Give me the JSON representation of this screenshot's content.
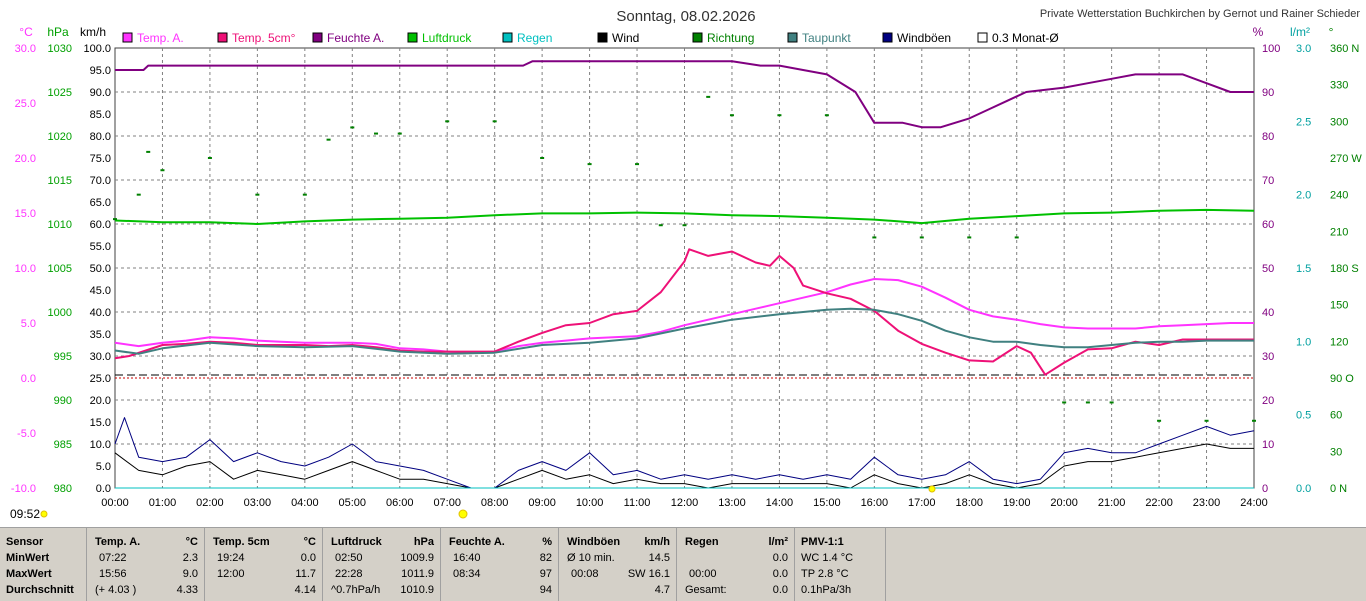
{
  "header": {
    "title": "Sonntag, 08.02.2026",
    "credit": "Private Wetterstation Buchkirchen by Gernot und Rainer Schieder",
    "time": "09:52"
  },
  "legend": [
    {
      "label": "Temp. A.",
      "color": "#ff33ff"
    },
    {
      "label": "Temp. 5cm°",
      "color": "#ee1177"
    },
    {
      "label": "Feuchte A.",
      "color": "#800080"
    },
    {
      "label": "Luftdruck",
      "color": "#00c000"
    },
    {
      "label": "Regen",
      "color": "#00c0c0"
    },
    {
      "label": "Wind",
      "color": "#000000"
    },
    {
      "label": "Richtung",
      "color": "#008000"
    },
    {
      "label": "Taupunkt",
      "color": "#408080"
    },
    {
      "label": "Windböen",
      "color": "#000080"
    },
    {
      "label": "0.3 Monat-Ø",
      "color": "#ffffff"
    }
  ],
  "colors": {
    "temp": "#ff33ff",
    "temp5": "#ee1177",
    "hum": "#800080",
    "press": "#00c000",
    "rain": "#00c0c0",
    "wind": "#000000",
    "dir": "#008000",
    "dew": "#408080",
    "gust": "#000080",
    "zero": "#cc0000",
    "grid": "#808080"
  },
  "axes": {
    "temp": {
      "unit": "°C",
      "ticks": [
        "30.0",
        "25.0",
        "20.0",
        "15.0",
        "10.0",
        "5.0",
        "0.0",
        "-5.0",
        "-10.0"
      ]
    },
    "press": {
      "unit": "hPa",
      "ticks": [
        "1030",
        "1025",
        "1020",
        "1015",
        "1010",
        "1005",
        "1000",
        "995",
        "990",
        "985",
        "980"
      ]
    },
    "kmh": {
      "unit": "km/h",
      "ticks": [
        "100.0",
        "95.0",
        "90.0",
        "85.0",
        "80.0",
        "75.0",
        "70.0",
        "65.0",
        "60.0",
        "55.0",
        "50.0",
        "45.0",
        "40.0",
        "35.0",
        "30.0",
        "25.0",
        "20.0",
        "15.0",
        "10.0",
        "5.0",
        "0.0"
      ]
    },
    "pct": {
      "unit": "%",
      "ticks": [
        "100",
        "90",
        "80",
        "70",
        "60",
        "50",
        "40",
        "30",
        "20",
        "10",
        "0"
      ]
    },
    "rain": {
      "unit": "l/m²",
      "ticks": [
        "3.0",
        "2.5",
        "2.0",
        "1.5",
        "1.0",
        "0.5",
        "0.0"
      ]
    },
    "dir": {
      "unit": "°",
      "ticks": [
        "360 N",
        "330",
        "300",
        "270 W",
        "240",
        "210",
        "180 S",
        "150",
        "120",
        "90 O",
        "60",
        "30",
        "0 N"
      ]
    },
    "x": {
      "ticks": [
        "00:00",
        "01:00",
        "02:00",
        "03:00",
        "04:00",
        "05:00",
        "06:00",
        "07:00",
        "08:00",
        "09:00",
        "10:00",
        "11:00",
        "12:00",
        "13:00",
        "14:00",
        "15:00",
        "16:00",
        "17:00",
        "18:00",
        "19:00",
        "20:00",
        "21:00",
        "22:00",
        "23:00",
        "24:00"
      ]
    }
  },
  "chart_data": {
    "type": "line",
    "title": "Sonntag, 08.02.2026",
    "xlim": [
      0,
      24
    ],
    "grid": true,
    "series": [
      {
        "name": "Temp. A.",
        "axis": "°C",
        "x": [
          0,
          0.5,
          1,
          1.5,
          2,
          2.5,
          3,
          3.5,
          4,
          4.5,
          5,
          5.5,
          6,
          6.5,
          7,
          7.4,
          8,
          8.5,
          9,
          9.5,
          10,
          10.5,
          11,
          11.5,
          12,
          12.5,
          13,
          13.5,
          14,
          14.5,
          15,
          15.5,
          16,
          16.5,
          17,
          17.5,
          18,
          18.5,
          19,
          19.5,
          20,
          20.5,
          21,
          21.5,
          22,
          22.5,
          23,
          23.5,
          24
        ],
        "y": [
          3.2,
          2.9,
          3.2,
          3.4,
          3.7,
          3.6,
          3.4,
          3.3,
          3.2,
          3.2,
          3.2,
          3.1,
          2.7,
          2.6,
          2.4,
          2.3,
          2.4,
          2.9,
          3.2,
          3.4,
          3.6,
          3.7,
          3.8,
          4.2,
          4.8,
          5.3,
          5.8,
          6.3,
          6.8,
          7.3,
          7.8,
          8.5,
          9.0,
          8.9,
          8.3,
          7.3,
          6.2,
          5.6,
          5.3,
          4.9,
          4.6,
          4.5,
          4.5,
          4.5,
          4.7,
          4.8,
          4.9,
          5.0,
          5.0
        ]
      },
      {
        "name": "Temp. 5cm°",
        "axis": "°C",
        "x": [
          0,
          0.3,
          1,
          1.5,
          2,
          2.5,
          3,
          3.5,
          4,
          4.5,
          5,
          5.5,
          6,
          6.5,
          7,
          7.5,
          8,
          8.5,
          9,
          9.5,
          10,
          10.5,
          11,
          11.5,
          12,
          12.1,
          12.5,
          13,
          13.5,
          13.8,
          14,
          14.3,
          14.5,
          15,
          15.5,
          16,
          16.5,
          17,
          17.5,
          18,
          18.5,
          19,
          19.3,
          19.6,
          20,
          20.5,
          21,
          21.5,
          22,
          22.5,
          23,
          23.5,
          24
        ],
        "y": [
          1.8,
          2.0,
          3.0,
          3.1,
          3.3,
          3.2,
          3.0,
          3.0,
          3.0,
          2.9,
          3.0,
          2.8,
          2.5,
          2.4,
          2.4,
          2.4,
          2.4,
          3.3,
          4.1,
          4.8,
          5.0,
          5.8,
          6.1,
          7.8,
          10.6,
          11.7,
          11.1,
          11.5,
          10.5,
          10.2,
          11.1,
          10.0,
          8.4,
          7.7,
          7.2,
          6.1,
          4.3,
          3.1,
          2.3,
          1.6,
          1.5,
          2.9,
          2.3,
          0.3,
          1.4,
          2.6,
          2.7,
          3.3,
          3.0,
          3.5,
          3.5,
          3.5,
          3.5
        ]
      },
      {
        "name": "Feuchte A.",
        "axis": "%",
        "x": [
          0,
          0.6,
          0.7,
          1.3,
          2,
          3,
          4,
          5,
          6,
          7,
          8,
          8.6,
          8.8,
          9,
          10,
          11,
          12,
          13,
          13.6,
          14,
          14.5,
          15,
          15.6,
          16,
          16.6,
          17,
          17.4,
          18,
          18.4,
          18.8,
          19.2,
          20,
          20.5,
          21,
          21.5,
          22,
          22.5,
          23,
          23.5,
          24
        ],
        "y": [
          95,
          95,
          96,
          96,
          96,
          96,
          96,
          96,
          96,
          96,
          96,
          96,
          97,
          97,
          97,
          97,
          97,
          97,
          96,
          96,
          95,
          94,
          90,
          83,
          83,
          82,
          82,
          84,
          86,
          88,
          90,
          91,
          92,
          93,
          94,
          94,
          94,
          92,
          90,
          90
        ]
      },
      {
        "name": "Luftdruck",
        "axis": "hPa",
        "x": [
          0,
          1,
          2,
          3,
          4,
          5,
          6,
          7,
          8,
          9,
          10,
          11,
          12,
          13,
          14,
          15,
          16,
          17,
          18,
          19,
          20,
          21,
          22,
          23,
          24
        ],
        "y": [
          1010.4,
          1010.2,
          1010.2,
          1010.0,
          1010.3,
          1010.5,
          1010.6,
          1010.7,
          1011.0,
          1011.2,
          1011.2,
          1011.3,
          1011.2,
          1011.0,
          1010.9,
          1010.7,
          1010.5,
          1010.1,
          1010.6,
          1010.9,
          1011.2,
          1011.3,
          1011.5,
          1011.6,
          1011.5
        ]
      },
      {
        "name": "Taupunkt",
        "axis": "°C",
        "x": [
          0,
          0.5,
          1,
          2,
          3,
          4,
          5,
          6,
          7,
          8,
          9,
          10,
          11,
          12,
          13,
          14,
          15,
          15.5,
          16,
          16.5,
          17,
          17.5,
          18,
          18.5,
          19,
          19.5,
          20,
          20.5,
          21,
          21.5,
          22,
          22.5,
          23,
          23.5,
          24
        ],
        "y": [
          2.5,
          2.2,
          2.7,
          3.2,
          2.9,
          2.8,
          2.9,
          2.4,
          2.2,
          2.3,
          3.0,
          3.2,
          3.6,
          4.5,
          5.3,
          5.8,
          6.2,
          6.3,
          6.2,
          5.8,
          5.2,
          4.3,
          3.7,
          3.3,
          3.3,
          3.0,
          2.8,
          2.8,
          3.0,
          3.2,
          3.3,
          3.3,
          3.4,
          3.4,
          3.4
        ]
      },
      {
        "name": "Wind",
        "axis": "km/h",
        "x": [
          0,
          0.5,
          1,
          1.5,
          2,
          2.5,
          3,
          3.5,
          4,
          4.5,
          5,
          5.5,
          6,
          6.5,
          7,
          7.5,
          8,
          8.5,
          9,
          9.5,
          10,
          10.5,
          11,
          11.5,
          12,
          12.5,
          13,
          13.5,
          14,
          14.5,
          15,
          15.5,
          16,
          16.5,
          17,
          17.5,
          18,
          18.5,
          19,
          19.5,
          20,
          20.5,
          21,
          21.5,
          22,
          22.5,
          23,
          23.5,
          24
        ],
        "y": [
          8,
          4,
          3,
          5,
          6,
          2,
          4,
          3,
          2,
          4,
          6,
          4,
          2,
          2,
          1,
          0,
          0,
          2,
          4,
          2,
          3,
          1,
          2,
          1,
          1,
          0,
          1,
          1,
          1,
          1,
          1,
          0,
          3,
          1,
          0,
          1,
          3,
          1,
          0,
          1,
          5,
          6,
          6,
          7,
          8,
          9,
          10,
          9,
          9
        ]
      },
      {
        "name": "Windböen",
        "axis": "km/h",
        "x": [
          0,
          0.2,
          0.5,
          1,
          1.5,
          2,
          2.5,
          3,
          3.5,
          4,
          4.5,
          5,
          5.5,
          6,
          6.5,
          7,
          7.5,
          8,
          8.5,
          9,
          9.5,
          10,
          10.5,
          11,
          11.5,
          12,
          12.5,
          13,
          13.5,
          14,
          14.5,
          15,
          15.5,
          16,
          16.5,
          17,
          17.5,
          18,
          18.5,
          19,
          19.5,
          20,
          20.5,
          21,
          21.5,
          22,
          22.5,
          23,
          23.5,
          24
        ],
        "y": [
          10,
          16,
          7,
          6,
          7,
          11,
          6,
          8,
          6,
          5,
          7,
          10,
          6,
          5,
          4,
          2,
          0,
          0,
          4,
          6,
          4,
          8,
          3,
          4,
          2,
          3,
          2,
          3,
          2,
          3,
          2,
          3,
          2,
          7,
          3,
          2,
          3,
          6,
          2,
          1,
          2,
          8,
          9,
          8,
          8,
          10,
          12,
          14,
          12,
          13
        ]
      },
      {
        "name": "Richtung",
        "axis": "°",
        "x": [
          0,
          0.5,
          0.7,
          1,
          2,
          3,
          4,
          4.5,
          5,
          5.5,
          6,
          7,
          8,
          9,
          10,
          11,
          11.5,
          12,
          12.5,
          13,
          14,
          15,
          16,
          17,
          18,
          19,
          20,
          20.5,
          21,
          22,
          23,
          24
        ],
        "y": [
          220,
          240,
          275,
          260,
          270,
          240,
          240,
          285,
          295,
          290,
          290,
          300,
          300,
          270,
          265,
          265,
          215,
          215,
          320,
          305,
          305,
          305,
          205,
          205,
          205,
          205,
          70,
          70,
          70,
          55,
          55,
          55
        ]
      },
      {
        "name": "Regen",
        "axis": "l/m²",
        "x": [
          0,
          24
        ],
        "y": [
          0,
          0
        ]
      }
    ]
  },
  "stats": {
    "sensor": {
      "title": "Sensor",
      "rows": [
        "MinWert",
        "MaxWert",
        "Durchschnitt"
      ]
    },
    "temp_a": {
      "title": "Temp. A.",
      "unit": "°C",
      "min_time": "07:22",
      "min": "2.3",
      "max_time": "15:56",
      "max": "9.0",
      "avg_note": "(+ 4.03 )",
      "avg": "4.33"
    },
    "temp_5": {
      "title": "Temp. 5cm",
      "unit": "°C",
      "min_time": "19:24",
      "min": "0.0",
      "max_time": "12:00",
      "max": "11.7",
      "avg": "4.14"
    },
    "press": {
      "title": "Luftdruck",
      "unit": "hPa",
      "min_time": "02:50",
      "min": "1009.9",
      "max_time": "22:28",
      "max": "1011.9",
      "avg_note": "^0.7hPa/h",
      "avg": "1010.9"
    },
    "hum": {
      "title": "Feuchte A.",
      "unit": "%",
      "min_time": "16:40",
      "min": "82",
      "max_time": "08:34",
      "max": "97",
      "avg": "94"
    },
    "gust": {
      "title": "Windböen",
      "unit": "km/h",
      "min_label": "Ø 10 min.",
      "min": "14.5",
      "max_time": "00:08",
      "max": "SW 16.1",
      "avg": "4.7"
    },
    "rain": {
      "title": "Regen",
      "unit": "l/m²",
      "min": "0.0",
      "max_time": "00:00",
      "max": "0.0",
      "avg_label": "Gesamt:",
      "avg": "0.0"
    },
    "pmv": {
      "title": "PMV-1:1",
      "row1": "WC 1.4 °C",
      "row2": "TP 2.8 °C",
      "row3": "0.1hPa/3h"
    }
  }
}
